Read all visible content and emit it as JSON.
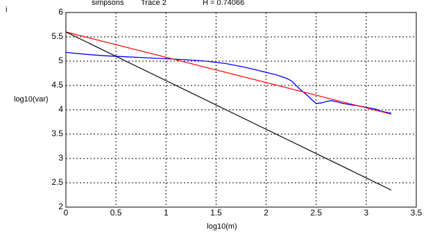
{
  "chart_data": {
    "type": "line",
    "annotations": [
      "i",
      "simpsons",
      "Trace 2",
      "H = 0.74066"
    ],
    "xlabel": "log10(m)",
    "ylabel": "log10(var)",
    "xlim": [
      0,
      3.5
    ],
    "ylim": [
      2,
      6
    ],
    "xticks": [
      0,
      0.5,
      1,
      1.5,
      2,
      2.5,
      3,
      3.5
    ],
    "yticks": [
      2,
      2.5,
      3,
      3.5,
      4,
      4.5,
      5,
      5.5,
      6
    ],
    "grid": true,
    "series": [
      {
        "color": "#0000ff",
        "x": [
          0,
          0.2,
          0.4,
          0.6,
          0.8,
          1.0,
          1.2,
          1.4,
          1.6,
          1.8,
          1.9,
          2.0,
          2.1,
          2.2,
          2.25,
          2.3,
          2.35,
          2.4,
          2.45,
          2.5,
          2.55,
          2.6,
          2.65,
          2.7,
          2.75,
          2.8,
          2.85,
          2.9,
          2.95,
          3.0,
          3.05,
          3.1,
          3.15,
          3.2,
          3.25
        ],
        "values": [
          5.18,
          5.14,
          5.11,
          5.09,
          5.07,
          5.05,
          5.03,
          5.0,
          4.95,
          4.87,
          4.82,
          4.77,
          4.72,
          4.65,
          4.6,
          4.5,
          4.4,
          4.32,
          4.22,
          4.13,
          4.14,
          4.17,
          4.19,
          4.17,
          4.14,
          4.12,
          4.1,
          4.09,
          4.07,
          4.05,
          4.03,
          4.01,
          3.97,
          3.95,
          3.93
        ]
      },
      {
        "color": "#ff0000",
        "x": [
          0,
          3.25
        ],
        "values": [
          5.6,
          3.91
        ]
      },
      {
        "color": "#000000",
        "x": [
          0,
          3.25
        ],
        "values": [
          5.6,
          2.35
        ]
      }
    ]
  }
}
